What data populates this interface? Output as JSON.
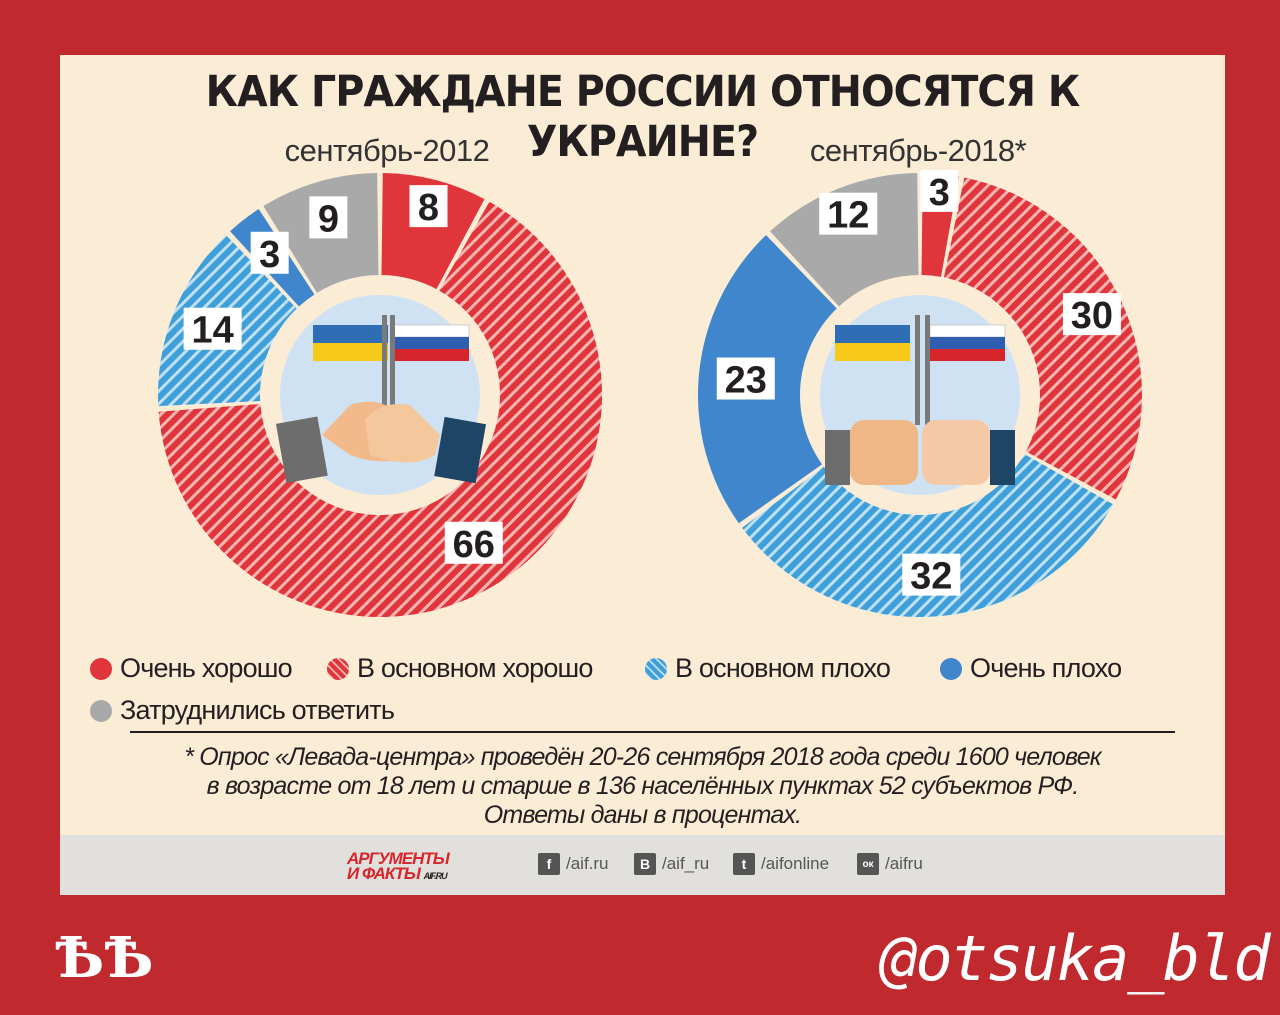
{
  "title": "КАК ГРАЖДАНЕ РОССИИ ОТНОСЯТСЯ К УКРАИНЕ?",
  "chart_data": [
    {
      "type": "donut",
      "title": "сентябрь-2012",
      "categories": [
        "Очень хорошо",
        "В основном хорошо",
        "В основном плохо",
        "Очень плохо",
        "Затруднились ответить"
      ],
      "values": [
        8,
        66,
        14,
        3,
        9
      ]
    },
    {
      "type": "donut",
      "title": "сентябрь-2018*",
      "categories": [
        "Очень хорошо",
        "В основном хорошо",
        "В основном плохо",
        "Очень плохо",
        "Затруднились ответить"
      ],
      "values": [
        3,
        30,
        32,
        23,
        12
      ]
    }
  ],
  "legend": [
    {
      "label": "Очень хорошо",
      "color": "#e0363b",
      "pattern": false
    },
    {
      "label": "В основном хорошо",
      "color": "#e0363b",
      "pattern": true
    },
    {
      "label": "В основном плохо",
      "color": "#3f9fd9",
      "pattern": true
    },
    {
      "label": "Очень плохо",
      "color": "#3f86cc",
      "pattern": false
    },
    {
      "label": "Затруднились ответить",
      "color": "#a9a9a9",
      "pattern": false
    }
  ],
  "note": {
    "line1": "* Опрос «Левада-центра» проведён 20-26 сентября 2018 года среди 1600 человек",
    "line2": "в возрасте от 18 лет и старше в 136 населённых пунктах 52 субъектов РФ.",
    "line3": "Ответы даны в процентах."
  },
  "footer": {
    "logo_line1": "АРГУМЕНТЫ",
    "logo_line2": "И ФАКТЫ",
    "logo_site": "AIF.RU",
    "social": [
      {
        "icon": "facebook-icon",
        "glyph": "f",
        "label": "/aif.ru"
      },
      {
        "icon": "vk-icon",
        "glyph": "В",
        "label": "/aif_ru"
      },
      {
        "icon": "twitter-icon",
        "glyph": "t",
        "label": "/aifonline"
      },
      {
        "icon": "odnoklassniki-icon",
        "glyph": "ок",
        "label": "/aifru"
      }
    ]
  },
  "watermark": {
    "mark": "ѢѢ",
    "handle": "@otsuka_bld"
  },
  "colors": {
    "background": "#c0292d",
    "card": "#fbecd6",
    "center": "#cfe2f4"
  }
}
